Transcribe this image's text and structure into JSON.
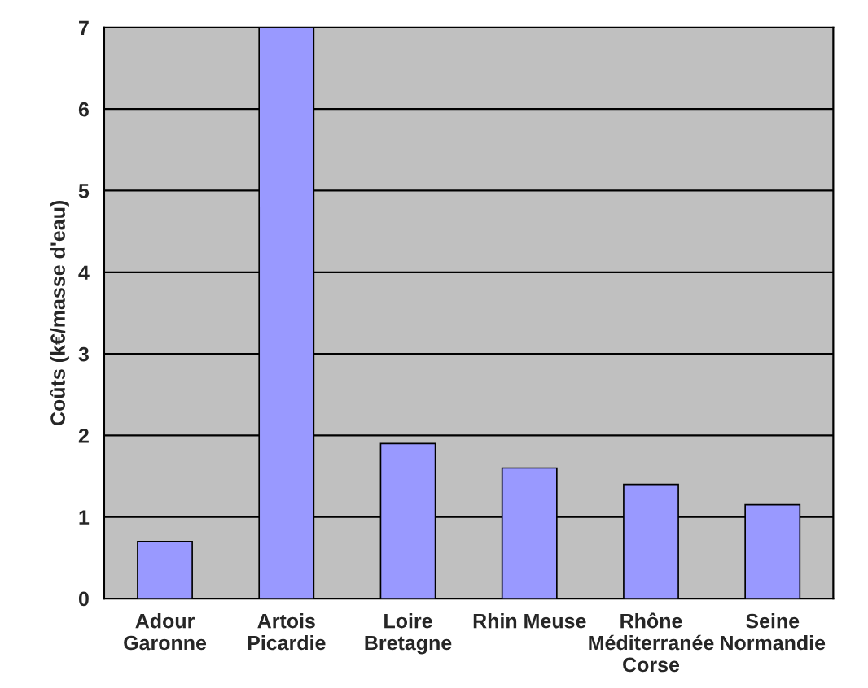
{
  "chart_data": {
    "type": "bar",
    "ylabel": "Coûts (k€/masse d'eau)",
    "categories": [
      "Adour\nGaronne",
      "Artois\nPicardie",
      "Loire\nBretagne",
      "Rhin Meuse",
      "Rhône\nMéditerranée\nCorse",
      "Seine\nNormandie"
    ],
    "values": [
      0.7,
      7.0,
      1.9,
      1.6,
      1.4,
      1.15
    ],
    "color": "#9999ff",
    "ylim": [
      0,
      7
    ],
    "yticks": [
      0,
      1,
      2,
      3,
      4,
      5,
      6,
      7
    ],
    "grid": "y"
  }
}
